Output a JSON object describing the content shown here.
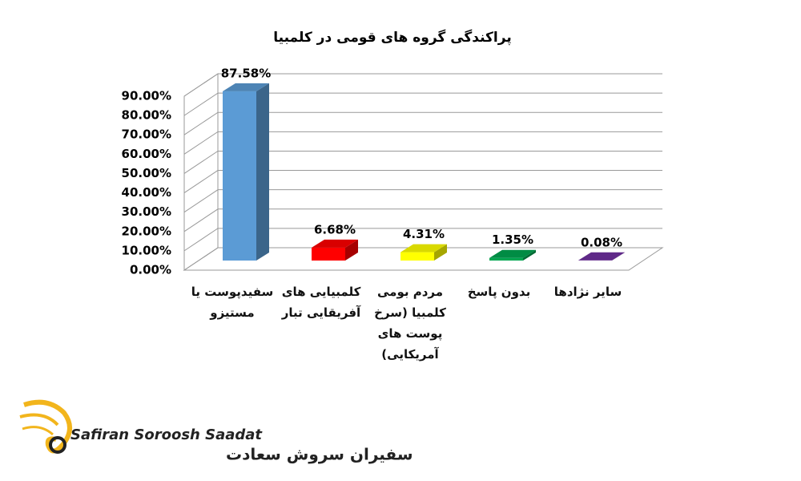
{
  "chart_data": {
    "type": "bar3d",
    "title": "پراکندگی گروه های قومی در کلمبیا",
    "categories": [
      "سفیدپوست یا مستیزو",
      "کلمبیایی های آفریقایی تبار",
      "مردم بومی کلمبیا (سرخ پوست های آمریکایی)",
      "بدون پاسخ",
      "سایر نژادها"
    ],
    "values": [
      87.58,
      6.68,
      4.31,
      1.35,
      0.08
    ],
    "value_labels": [
      "87.58%",
      "6.68%",
      "4.31%",
      "1.35%",
      "0.08%"
    ],
    "colors": [
      "#5b9bd5",
      "#ff0000",
      "#ffff00",
      "#00a550",
      "#7030a0"
    ],
    "ylim": [
      0,
      90
    ],
    "yticks": [
      {
        "value": 0,
        "label": "0.00%"
      },
      {
        "value": 10,
        "label": "10.00%"
      },
      {
        "value": 20,
        "label": "20.00%"
      },
      {
        "value": 30,
        "label": "30.00%"
      },
      {
        "value": 40,
        "label": "40.00%"
      },
      {
        "value": 50,
        "label": "50.00%"
      },
      {
        "value": 60,
        "label": "60.00%"
      },
      {
        "value": 70,
        "label": "70.00%"
      },
      {
        "value": 80,
        "label": "80.00%"
      },
      {
        "value": 90,
        "label": "90.00%"
      }
    ],
    "grid": true
  },
  "logo": {
    "name_en": "Safiran Soroosh Saadat",
    "name_fa": "سفیران سروش سعادت"
  }
}
